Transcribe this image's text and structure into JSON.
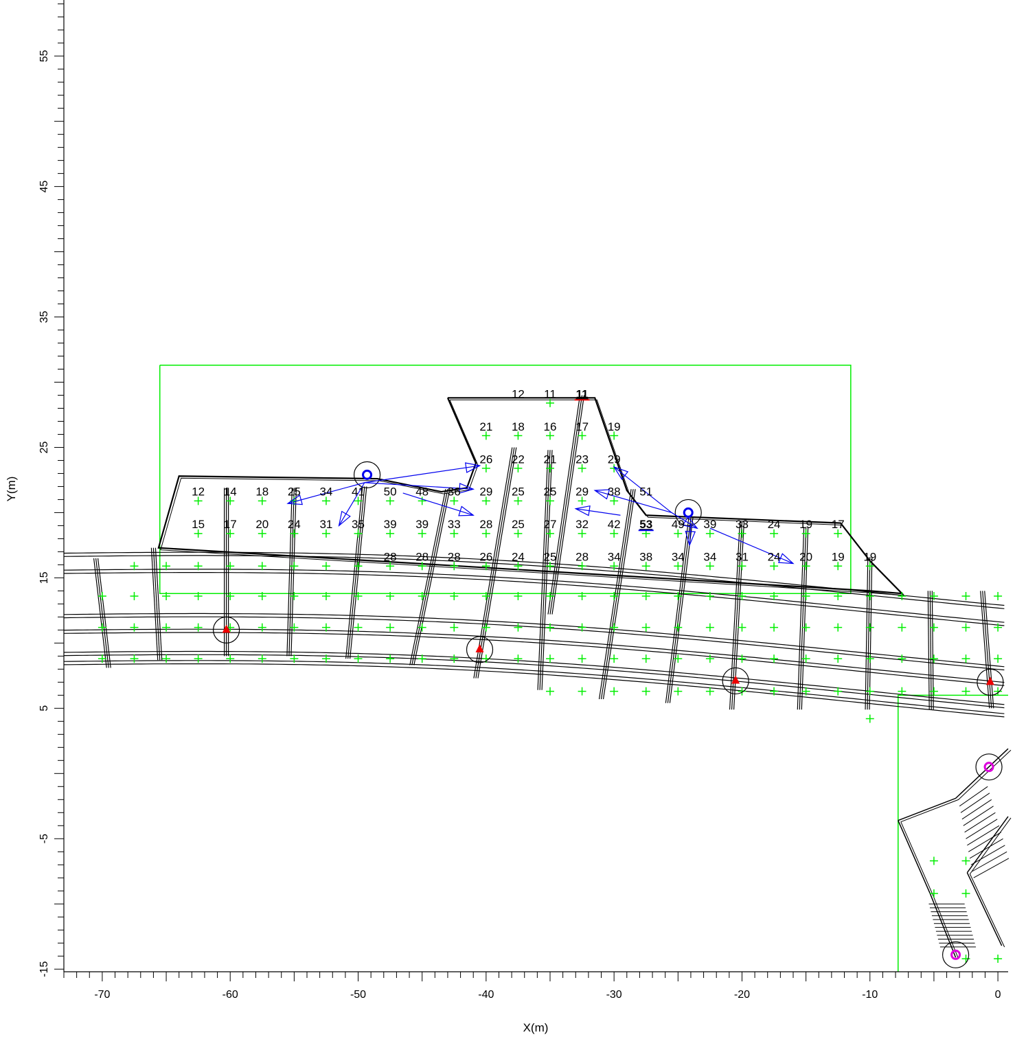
{
  "axes": {
    "xlabel": "X(m)",
    "ylabel": "Y(m)",
    "xlim": [
      -73,
      0.8
    ],
    "ylim": [
      -15.2,
      59.3
    ],
    "xticks": [
      -70,
      -60,
      -50,
      -40,
      -30,
      -20,
      -10,
      0
    ],
    "yticks": [
      -15,
      -5,
      5,
      15,
      25,
      35,
      45,
      55
    ]
  },
  "colors": {
    "grid_marker": "#00ee00",
    "arrow": "#0000ee",
    "max_value": "#ee0000",
    "marker_a": "#ee0000",
    "marker_c": "#dd00dd",
    "structure": "#000000"
  },
  "rows": [
    {
      "y": 28.8,
      "items": [
        {
          "x": -37.5,
          "v": "12"
        },
        {
          "x": -35.0,
          "v": "11"
        },
        {
          "x": -32.5,
          "v": "11",
          "style": "max"
        }
      ]
    },
    {
      "y": 26.3,
      "items": [
        {
          "x": -40.0,
          "v": "21"
        },
        {
          "x": -37.5,
          "v": "18"
        },
        {
          "x": -35.0,
          "v": "16"
        },
        {
          "x": -32.5,
          "v": "17"
        },
        {
          "x": -30.0,
          "v": "19"
        }
      ]
    },
    {
      "y": 23.8,
      "items": [
        {
          "x": -40.0,
          "v": "26"
        },
        {
          "x": -37.5,
          "v": "22"
        },
        {
          "x": -35.0,
          "v": "21"
        },
        {
          "x": -32.5,
          "v": "23"
        },
        {
          "x": -30.0,
          "v": "29"
        }
      ]
    },
    {
      "y": 21.3,
      "items": [
        {
          "x": -62.5,
          "v": "12"
        },
        {
          "x": -60.0,
          "v": "14"
        },
        {
          "x": -57.5,
          "v": "18"
        },
        {
          "x": -55.0,
          "v": "25"
        },
        {
          "x": -52.5,
          "v": "34"
        },
        {
          "x": -50.0,
          "v": "41"
        },
        {
          "x": -47.5,
          "v": "50"
        },
        {
          "x": -45.0,
          "v": "48"
        },
        {
          "x": -42.5,
          "v": "36"
        },
        {
          "x": -40.0,
          "v": "29"
        },
        {
          "x": -37.5,
          "v": "25"
        },
        {
          "x": -35.0,
          "v": "25"
        },
        {
          "x": -32.5,
          "v": "29"
        },
        {
          "x": -30.0,
          "v": "38"
        },
        {
          "x": -27.5,
          "v": "51"
        }
      ]
    },
    {
      "y": 18.8,
      "items": [
        {
          "x": -62.5,
          "v": "15"
        },
        {
          "x": -60.0,
          "v": "17"
        },
        {
          "x": -57.5,
          "v": "20"
        },
        {
          "x": -55.0,
          "v": "24"
        },
        {
          "x": -52.5,
          "v": "31"
        },
        {
          "x": -50.0,
          "v": "35"
        },
        {
          "x": -47.5,
          "v": "39"
        },
        {
          "x": -45.0,
          "v": "39"
        },
        {
          "x": -42.5,
          "v": "33"
        },
        {
          "x": -40.0,
          "v": "28"
        },
        {
          "x": -37.5,
          "v": "25"
        },
        {
          "x": -35.0,
          "v": "27"
        },
        {
          "x": -32.5,
          "v": "32"
        },
        {
          "x": -30.0,
          "v": "42"
        },
        {
          "x": -27.5,
          "v": "53",
          "style": "max-blue"
        },
        {
          "x": -25.0,
          "v": "49"
        },
        {
          "x": -22.5,
          "v": "39"
        },
        {
          "x": -20.0,
          "v": "33"
        },
        {
          "x": -17.5,
          "v": "24"
        },
        {
          "x": -15.0,
          "v": "19"
        },
        {
          "x": -12.5,
          "v": "17"
        }
      ]
    },
    {
      "y": 16.3,
      "items": [
        {
          "x": -47.5,
          "v": "28"
        },
        {
          "x": -45.0,
          "v": "28"
        },
        {
          "x": -42.5,
          "v": "28"
        },
        {
          "x": -40.0,
          "v": "26"
        },
        {
          "x": -37.5,
          "v": "24"
        },
        {
          "x": -35.0,
          "v": "25"
        },
        {
          "x": -32.5,
          "v": "28"
        },
        {
          "x": -30.0,
          "v": "34"
        },
        {
          "x": -27.5,
          "v": "38"
        },
        {
          "x": -25.0,
          "v": "34"
        },
        {
          "x": -22.5,
          "v": "34"
        },
        {
          "x": -20.0,
          "v": "31"
        },
        {
          "x": -17.5,
          "v": "24"
        },
        {
          "x": -15.0,
          "v": "20"
        },
        {
          "x": -12.5,
          "v": "19"
        },
        {
          "x": -10.0,
          "v": "19"
        }
      ]
    }
  ],
  "grid_markers": [
    {
      "y": 28.4,
      "x": [
        -35.0
      ]
    },
    {
      "y": 25.9,
      "x": [
        -40.0,
        -37.5,
        -35.0,
        -32.5,
        -30.0
      ]
    },
    {
      "y": 23.4,
      "x": [
        -40.0,
        -37.5,
        -35.0,
        -32.5,
        -30.0
      ]
    },
    {
      "y": 20.9,
      "x": [
        -62.5,
        -60.0,
        -57.5,
        -55.0,
        -52.5,
        -50.0,
        -47.5,
        -45.0,
        -42.5,
        -40.0,
        -37.5,
        -35.0,
        -32.5,
        -30.0
      ]
    },
    {
      "y": 18.4,
      "x": [
        -62.5,
        -60.0,
        -57.5,
        -55.0,
        -52.5,
        -50.0,
        -47.5,
        -45.0,
        -42.5,
        -40.0,
        -37.5,
        -35.0,
        -32.5,
        -30.0,
        -27.5,
        -25.0,
        -22.5,
        -20.0,
        -17.5,
        -15.0,
        -12.5
      ]
    },
    {
      "y": 15.9,
      "x": [
        -67.5,
        -65.0,
        -62.5,
        -60.0,
        -57.5,
        -55.0,
        -52.5,
        -50.0,
        -47.5,
        -45.0,
        -42.5,
        -40.0,
        -37.5,
        -35.0,
        -32.5,
        -30.0,
        -27.5,
        -25.0,
        -22.5,
        -20.0,
        -17.5,
        -15.0,
        -12.5,
        -10.0
      ]
    },
    {
      "y": 13.6,
      "x": [
        -70.0,
        -67.5,
        -65.0,
        -62.5,
        -60.0,
        -57.5,
        -55.0,
        -52.5,
        -50.0,
        -47.5,
        -45.0,
        -42.5,
        -40.0,
        -37.5,
        -35.0,
        -32.5,
        -30.0,
        -27.5,
        -25.0,
        -22.5,
        -20.0,
        -17.5,
        -15.0,
        -12.5,
        -10.0,
        -7.5,
        -5.0,
        -2.5,
        0.0
      ]
    },
    {
      "y": 11.2,
      "x": [
        -70.0,
        -67.5,
        -65.0,
        -62.5,
        -60.0,
        -57.5,
        -55.0,
        -52.5,
        -50.0,
        -47.5,
        -45.0,
        -42.5,
        -40.0,
        -37.5,
        -35.0,
        -32.5,
        -30.0,
        -27.5,
        -25.0,
        -22.5,
        -20.0,
        -17.5,
        -15.0,
        -12.5,
        -10.0,
        -7.5,
        -5.0,
        -2.5,
        0.0
      ]
    },
    {
      "y": 8.8,
      "x": [
        -70.0,
        -67.5,
        -65.0,
        -62.5,
        -60.0,
        -57.5,
        -55.0,
        -52.5,
        -50.0,
        -47.5,
        -45.0,
        -42.5,
        -40.0,
        -37.5,
        -35.0,
        -32.5,
        -30.0,
        -27.5,
        -25.0,
        -22.5,
        -20.0,
        -17.5,
        -15.0,
        -12.5,
        -10.0,
        -7.5,
        -5.0,
        -2.5,
        0.0
      ]
    },
    {
      "y": 6.3,
      "x": [
        -35.0,
        -32.5,
        -30.0,
        -27.5,
        -25.0,
        -22.5,
        -20.0,
        -17.5,
        -15.0,
        -12.5,
        -10.0,
        -7.5,
        -5.0,
        -2.5,
        0.0
      ]
    },
    {
      "y": 4.2,
      "x": [
        -10.0
      ]
    },
    {
      "y": -6.7,
      "x": [
        -5.0,
        -2.5
      ]
    },
    {
      "y": -9.2,
      "x": [
        -5.0,
        -2.5
      ]
    },
    {
      "y": -14.2,
      "x": [
        -2.5,
        0.0
      ]
    }
  ],
  "arrows": [
    {
      "from": [
        -49.5,
        22.3
      ],
      "to": [
        -40.5,
        23.6
      ]
    },
    {
      "from": [
        -49.5,
        22.3
      ],
      "to": [
        -41.0,
        21.8
      ]
    },
    {
      "from": [
        -49.5,
        22.3
      ],
      "to": [
        -55.5,
        20.7
      ]
    },
    {
      "from": [
        -49.5,
        22.3
      ],
      "to": [
        -51.5,
        19.0
      ]
    },
    {
      "from": [
        -46.5,
        21.5
      ],
      "to": [
        -41.0,
        19.8
      ]
    },
    {
      "from": [
        -25.5,
        20.0
      ],
      "to": [
        -30.0,
        23.5
      ]
    },
    {
      "from": [
        -25.5,
        20.0
      ],
      "to": [
        -31.5,
        21.7
      ]
    },
    {
      "from": [
        -29.5,
        19.8
      ],
      "to": [
        -33.0,
        20.3
      ]
    },
    {
      "from": [
        -25.5,
        20.0
      ],
      "to": [
        -23.5,
        18.8
      ]
    },
    {
      "from": [
        -24.0,
        19.2
      ],
      "to": [
        -24.1,
        17.5
      ]
    },
    {
      "from": [
        -22.5,
        18.8
      ],
      "to": [
        -16.0,
        16.1
      ]
    }
  ],
  "markers": [
    {
      "type": "A",
      "x": -60.3,
      "y": 11.0
    },
    {
      "type": "A",
      "x": -40.5,
      "y": 9.5
    },
    {
      "type": "A",
      "x": -20.5,
      "y": 7.1
    },
    {
      "type": "A",
      "x": -0.6,
      "y": 7.0
    },
    {
      "type": "B",
      "x": -49.3,
      "y": 22.9
    },
    {
      "type": "B",
      "x": -24.2,
      "y": 20.0
    },
    {
      "type": "C",
      "x": -0.7,
      "y": 0.5
    },
    {
      "type": "C",
      "x": -3.3,
      "y": -13.9
    }
  ],
  "boundaries": [
    {
      "pts": [
        [
          -65.5,
          31.3
        ],
        [
          -11.5,
          31.3
        ],
        [
          -11.5,
          13.8
        ],
        [
          -65.5,
          13.8
        ],
        [
          -65.5,
          31.3
        ]
      ]
    },
    {
      "pts": [
        [
          -7.8,
          -15.2
        ],
        [
          -7.8,
          6.0
        ],
        [
          0.8,
          6.0
        ]
      ]
    }
  ],
  "building": {
    "pts": [
      [
        -43.0,
        28.8
      ],
      [
        -31.5,
        28.8
      ],
      [
        -29.0,
        21.7
      ],
      [
        -27.5,
        19.8
      ],
      [
        -12.3,
        19.2
      ],
      [
        -10.0,
        16.3
      ],
      [
        -7.5,
        13.8
      ],
      [
        -10.0,
        14.0
      ],
      [
        -65.6,
        17.3
      ],
      [
        -64.0,
        22.8
      ],
      [
        -48.5,
        22.6
      ],
      [
        -43.5,
        21.6
      ],
      [
        -41.5,
        21.9
      ],
      [
        -40.8,
        23.8
      ],
      [
        -43.0,
        28.8
      ]
    ]
  },
  "beams_y": [
    16.4,
    15.1,
    11.7,
    10.5,
    8.8,
    8.1
  ],
  "piles": [
    {
      "x1": -70.5,
      "y1": 16.5,
      "x2": -69.5,
      "y2": 8.1
    },
    {
      "x1": -66.0,
      "y1": 17.3,
      "x2": -65.5,
      "y2": 8.7
    },
    {
      "x1": -60.3,
      "y1": 21.9,
      "x2": -60.3,
      "y2": 9.0
    },
    {
      "x1": -55.0,
      "y1": 21.9,
      "x2": -55.4,
      "y2": 9.0
    },
    {
      "x1": -49.5,
      "y1": 22.0,
      "x2": -50.8,
      "y2": 8.8
    },
    {
      "x1": -43.0,
      "y1": 21.8,
      "x2": -45.8,
      "y2": 8.3
    },
    {
      "x1": -37.8,
      "y1": 25.0,
      "x2": -40.8,
      "y2": 7.3
    },
    {
      "x1": -35.0,
      "y1": 24.8,
      "x2": -35.8,
      "y2": 6.4
    },
    {
      "x1": -32.5,
      "y1": 29.0,
      "x2": -35.0,
      "y2": 12.2
    },
    {
      "x1": -28.5,
      "y1": 21.8,
      "x2": -31.0,
      "y2": 5.7
    },
    {
      "x1": -24.0,
      "y1": 19.6,
      "x2": -25.8,
      "y2": 5.4
    },
    {
      "x1": -20.0,
      "y1": 19.3,
      "x2": -20.8,
      "y2": 4.9
    },
    {
      "x1": -15.0,
      "y1": 18.9,
      "x2": -15.5,
      "y2": 4.9
    },
    {
      "x1": -10.0,
      "y1": 16.6,
      "x2": -10.2,
      "y2": 4.9
    },
    {
      "x1": -5.3,
      "y1": 14.0,
      "x2": -5.2,
      "y2": 4.9
    },
    {
      "x1": -1.2,
      "y1": 14.0,
      "x2": -0.5,
      "y2": 5.0
    }
  ],
  "stair_outline": [
    [
      [
        -7.8,
        -3.6
      ],
      [
        -3.3,
        -1.9
      ],
      [
        0.8,
        1.9
      ]
    ],
    [
      [
        -7.8,
        -3.6
      ],
      [
        -5.3,
        -9.2
      ],
      [
        -3.3,
        -14.1
      ]
    ],
    [
      [
        -2.4,
        -7.6
      ],
      [
        0.8,
        -3.3
      ]
    ],
    [
      [
        -2.4,
        -7.6
      ],
      [
        0.3,
        -13.2
      ]
    ]
  ]
}
